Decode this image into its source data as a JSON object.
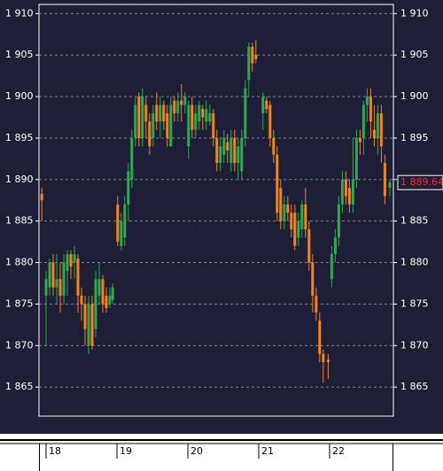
{
  "chart_data": {
    "type": "candlestick",
    "x": [
      17.94,
      18,
      18.05,
      18.1,
      18.15,
      18.2,
      18.25,
      18.3,
      18.35,
      18.4,
      18.45,
      18.5,
      18.55,
      18.6,
      18.65,
      18.7,
      18.75,
      18.8,
      18.85,
      18.9,
      18.94,
      19.01,
      19.06,
      19.11,
      19.16,
      19.21,
      19.26,
      19.31,
      19.36,
      19.41,
      19.46,
      19.51,
      19.56,
      19.61,
      19.66,
      19.71,
      19.76,
      19.81,
      19.86,
      19.91,
      19.96,
      20.01,
      20.06,
      20.11,
      20.16,
      20.21,
      20.26,
      20.31,
      20.36,
      20.41,
      20.46,
      20.51,
      20.56,
      20.61,
      20.66,
      20.71,
      20.76,
      20.81,
      20.86,
      20.91,
      20.96,
      21.06,
      21.11,
      21.16,
      21.21,
      21.26,
      21.31,
      21.36,
      21.41,
      21.46,
      21.51,
      21.56,
      21.61,
      21.66,
      21.71,
      21.76,
      21.81,
      21.86,
      21.91,
      21.98,
      22.03,
      22.08,
      22.13,
      22.18,
      22.23,
      22.28,
      22.33,
      22.38,
      22.43,
      22.48,
      22.53,
      22.58,
      22.63,
      22.68,
      22.73,
      22.78,
      22.85
    ],
    "open": [
      1888.3,
      1876,
      1877,
      1880,
      1877,
      1878,
      1876,
      1879,
      1881,
      1880,
      1880.5,
      1876,
      1875,
      1870,
      1875,
      1872,
      1876,
      1878,
      1876,
      1875,
      1875.5,
      1887,
      1882,
      1883,
      1887,
      1890,
      1895,
      1900,
      1895,
      1899,
      1897,
      1895,
      1899,
      1897,
      1899,
      1898,
      1894,
      1899.5,
      1898,
      1899.5,
      1899,
      1894,
      1899,
      1896,
      1897,
      1898.5,
      1897,
      1897,
      1898,
      1895,
      1892,
      1893,
      1894.5,
      1892,
      1895,
      1892,
      1891,
      1895,
      1902,
      1906,
      1905,
      1898,
      1899.5,
      1899,
      1895,
      1893,
      1889,
      1885,
      1887,
      1886,
      1886,
      1883,
      1884,
      1887,
      1884,
      1880,
      1876,
      1873,
      1869,
      1868.3,
      1878,
      1881,
      1883,
      1887,
      1890,
      1889,
      1887,
      1890,
      1895,
      1895,
      1899,
      1900,
      1896,
      1895,
      1898,
      1892,
      1889
    ],
    "high": [
      1889,
      1879,
      1880.5,
      1881,
      1881,
      1880,
      1881,
      1881.5,
      1881.5,
      1882,
      1881,
      1877,
      1876,
      1876,
      1876,
      1879,
      1880,
      1878.5,
      1877,
      1877,
      1877.5,
      1888,
      1886,
      1888,
      1892,
      1896,
      1900,
      1900.5,
      1901,
      1900,
      1898,
      1899,
      1900.5,
      1900,
      1899.5,
      1899,
      1900,
      1900,
      1900.5,
      1901.5,
      1900.5,
      1899.5,
      1900,
      1899,
      1899.5,
      1899,
      1899.5,
      1899,
      1898.5,
      1896,
      1895,
      1896,
      1895.5,
      1896,
      1896,
      1895,
      1896,
      1902,
      1906.5,
      1906.5,
      1906.8,
      1900.5,
      1900,
      1899.5,
      1896,
      1894,
      1890,
      1888,
      1888,
      1887,
      1887,
      1886,
      1887.5,
      1889,
      1885,
      1881,
      1877,
      1874,
      1869.5,
      1869,
      1882,
      1884,
      1888,
      1891,
      1891,
      1890,
      1895,
      1896,
      1896,
      1899.5,
      1901,
      1901,
      1899,
      1899,
      1899,
      1893,
      1890
    ],
    "low": [
      1885,
      1870,
      1876,
      1876,
      1875,
      1874,
      1875,
      1876,
      1878,
      1878,
      1874,
      1873,
      1870,
      1869,
      1869.5,
      1871,
      1875,
      1874,
      1874,
      1874.5,
      1875,
      1882,
      1881.5,
      1882,
      1885,
      1889,
      1894,
      1894,
      1894,
      1895,
      1893,
      1894,
      1896,
      1895,
      1896,
      1894,
      1894,
      1897,
      1897,
      1897,
      1898,
      1892.5,
      1895,
      1895,
      1896,
      1896,
      1896,
      1896.5,
      1894,
      1891,
      1891,
      1892,
      1892,
      1891,
      1891,
      1890,
      1890,
      1894,
      1900,
      1903,
      1904,
      1896,
      1898,
      1894,
      1892,
      1885,
      1884,
      1884,
      1885,
      1883,
      1881.5,
      1882,
      1883,
      1883,
      1879,
      1874,
      1873,
      1868,
      1865.5,
      1866,
      1877,
      1880,
      1882,
      1886,
      1887,
      1886,
      1886,
      1889,
      1893,
      1893,
      1897,
      1895,
      1894,
      1893,
      1892,
      1887,
      1888
    ],
    "close": [
      1887.5,
      1878,
      1880,
      1877,
      1878,
      1876,
      1880,
      1881,
      1879.5,
      1881,
      1876,
      1875,
      1872,
      1875,
      1870,
      1878,
      1878,
      1875,
      1874.5,
      1876,
      1877,
      1882.5,
      1885,
      1887,
      1891,
      1895,
      1899,
      1895,
      1900,
      1897,
      1894,
      1898,
      1897,
      1899,
      1897,
      1895,
      1899,
      1898,
      1899.5,
      1899,
      1900,
      1899,
      1896,
      1898,
      1899,
      1897.5,
      1898.5,
      1898,
      1895,
      1892,
      1894,
      1895,
      1893.5,
      1895,
      1892,
      1894,
      1895,
      1901,
      1906,
      1904,
      1904.5,
      1900,
      1898.5,
      1895,
      1893,
      1886,
      1885,
      1887,
      1886,
      1884,
      1882,
      1885,
      1887,
      1884,
      1880,
      1876,
      1874,
      1869,
      1868,
      1868,
      1881,
      1883,
      1887,
      1890,
      1888,
      1887,
      1890,
      1895,
      1894.5,
      1899,
      1900,
      1897,
      1895,
      1898,
      1894,
      1888,
      1889.64
    ],
    "up_color": "#2fa84f",
    "down_color": "#f5821f",
    "ylim": [
      1861.5,
      1911.1
    ],
    "yticks": [
      {
        "value": 1865,
        "label": "1 865"
      },
      {
        "value": 1870,
        "label": "1 870"
      },
      {
        "value": 1875,
        "label": "1 875"
      },
      {
        "value": 1880,
        "label": "1 880"
      },
      {
        "value": 1885,
        "label": "1 885"
      },
      {
        "value": 1890,
        "label": "1 890"
      },
      {
        "value": 1895,
        "label": "1 895"
      },
      {
        "value": 1900,
        "label": "1 900"
      },
      {
        "value": 1905,
        "label": "1 905"
      },
      {
        "value": 1910,
        "label": "1 910"
      }
    ],
    "xlim": [
      17.9,
      22.9
    ],
    "xticks": [
      18,
      19,
      20,
      21,
      22
    ],
    "grid": true,
    "last_price": {
      "value": 1889.64,
      "label": "1 889.64"
    }
  }
}
